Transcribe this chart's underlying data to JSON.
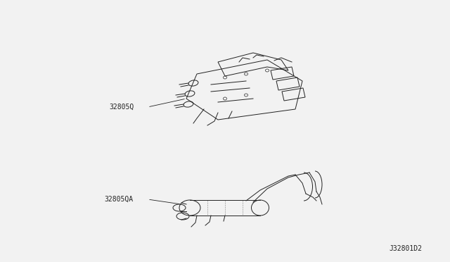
{
  "background_color": "#f0f0f0",
  "title": "",
  "label_top": "32805Q",
  "label_bottom": "32805QA",
  "ref_code": "J32801D2",
  "fig_width": 6.4,
  "fig_height": 3.72,
  "dpi": 100
}
